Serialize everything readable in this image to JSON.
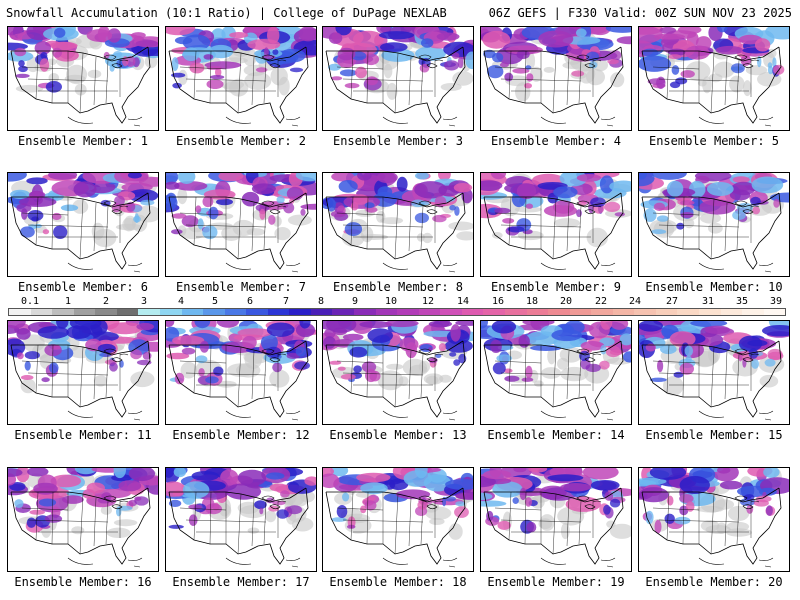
{
  "header": {
    "left_title": "Snowfall Accumulation (10:1 Ratio) | College of DuPage NEXLAB",
    "right_title": "06Z GEFS | F330 Valid: 00Z SUN NOV 23 2025"
  },
  "panels": [
    {
      "label": "Ensemble Member: 1"
    },
    {
      "label": "Ensemble Member: 2"
    },
    {
      "label": "Ensemble Member: 3"
    },
    {
      "label": "Ensemble Member: 4"
    },
    {
      "label": "Ensemble Member: 5"
    },
    {
      "label": "Ensemble Member: 6"
    },
    {
      "label": "Ensemble Member: 7"
    },
    {
      "label": "Ensemble Member: 8"
    },
    {
      "label": "Ensemble Member: 9"
    },
    {
      "label": "Ensemble Member: 10"
    },
    {
      "label": "Ensemble Member: 11"
    },
    {
      "label": "Ensemble Member: 12"
    },
    {
      "label": "Ensemble Member: 13"
    },
    {
      "label": "Ensemble Member: 14"
    },
    {
      "label": "Ensemble Member: 15"
    },
    {
      "label": "Ensemble Member: 16"
    },
    {
      "label": "Ensemble Member: 17"
    },
    {
      "label": "Ensemble Member: 18"
    },
    {
      "label": "Ensemble Member: 19"
    },
    {
      "label": "Ensemble Member: 20"
    }
  ],
  "colorbar": {
    "labels": [
      "0.1",
      "1",
      "2",
      "3",
      "4",
      "5",
      "6",
      "7",
      "8",
      "9",
      "10",
      "12",
      "14",
      "16",
      "18",
      "20",
      "22",
      "24",
      "27",
      "31",
      "35",
      "39"
    ],
    "colors": [
      "#f2f2f2",
      "#d9d9d9",
      "#bdbdbd",
      "#a0a0a0",
      "#8a8a8a",
      "#6f6f6f",
      "#b4ecf0",
      "#8fd6f2",
      "#6fb8f0",
      "#5a97ea",
      "#4a78e6",
      "#3a58e0",
      "#2c36d6",
      "#2a1fc8",
      "#4a1fb8",
      "#6a24b6",
      "#8a2cb8",
      "#a236b8",
      "#b23cb8",
      "#c046b8",
      "#d050b8",
      "#de5ab0",
      "#e464a8",
      "#e8709e",
      "#ec7c96",
      "#ee8a92",
      "#f09a96",
      "#f2a89e",
      "#f4b6a6",
      "#f6c2b0",
      "#f8ceba",
      "#fad8c4",
      "#fce2d0",
      "#fdeadc",
      "#fef2e8",
      "#fff8f2"
    ]
  }
}
